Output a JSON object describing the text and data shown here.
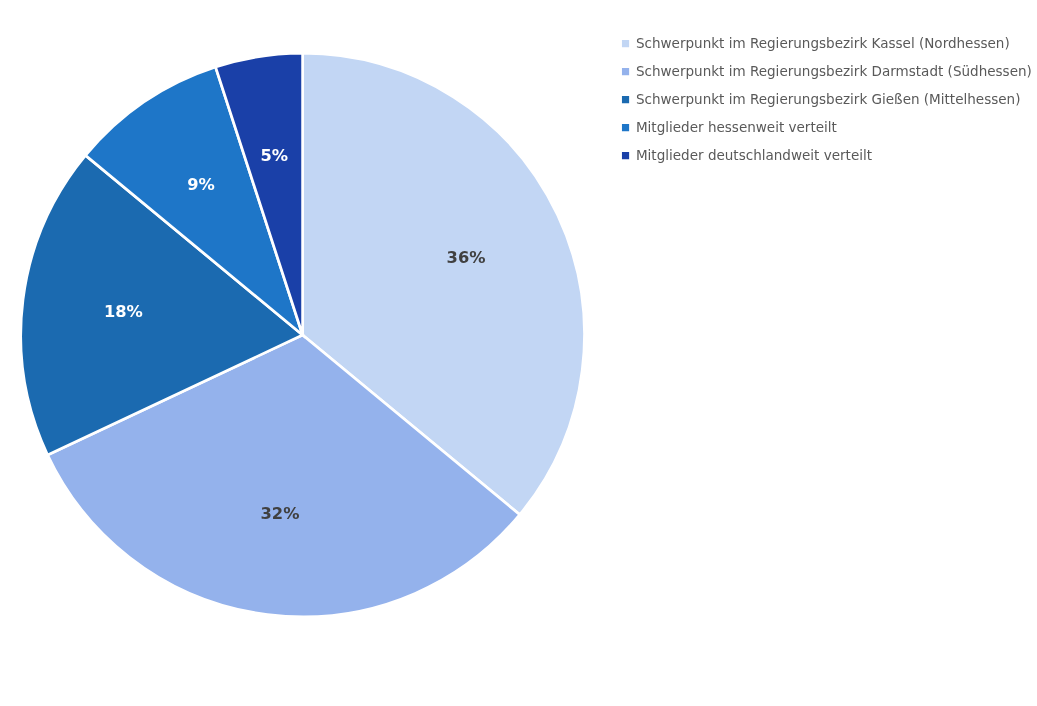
{
  "chart_data": {
    "type": "pie",
    "categories": [
      "Schwerpunkt im Regierungsbezirk Kassel (Nordhessen)",
      "Schwerpunkt im Regierungsbezirk Darmstadt (Südhessen)",
      "Schwerpunkt im Regierungsbezirk Gießen (Mittelhessen)",
      "Mitglieder hessenweit verteilt",
      "Mitglieder deutschlandweit verteilt"
    ],
    "values": [
      36,
      32,
      18,
      9,
      5
    ],
    "colors": [
      "#c2d6f4",
      "#94b2ec",
      "#1b6ab0",
      "#1e76c8",
      "#1a40a8"
    ],
    "value_labels": [
      "36%",
      "32%",
      "18%",
      "9%",
      "5%"
    ],
    "legend": "right"
  }
}
